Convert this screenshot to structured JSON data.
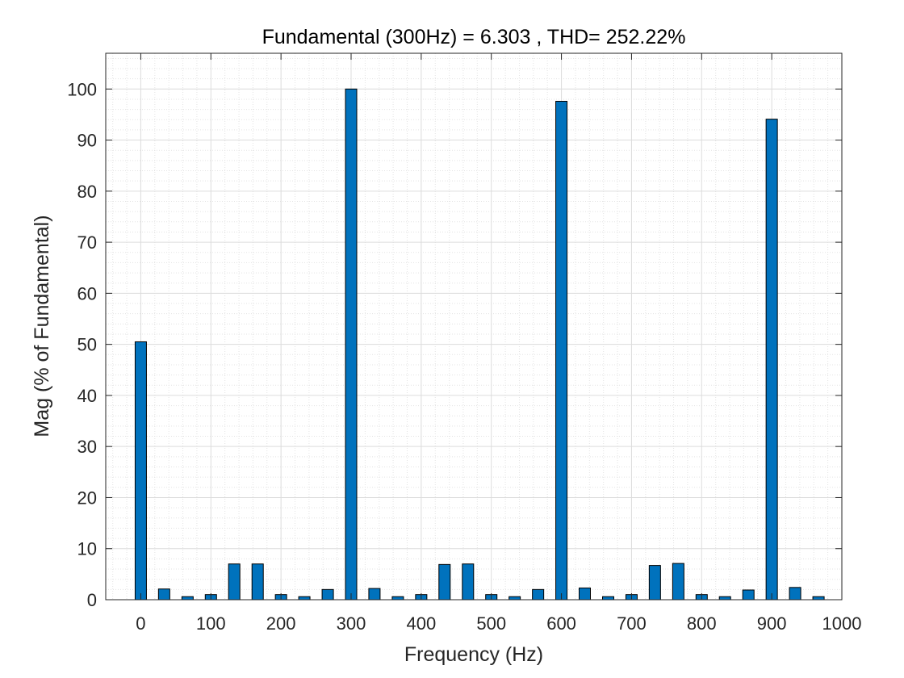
{
  "chart_data": {
    "type": "bar",
    "title": "Fundamental (300Hz) = 6.303 , THD= 252.22%",
    "xlabel": "Frequency (Hz)",
    "ylabel": "Mag (% of Fundamental)",
    "x": [
      0,
      33.3,
      66.7,
      100,
      133.3,
      166.7,
      200,
      233.3,
      266.7,
      300,
      333.3,
      366.7,
      400,
      433.3,
      466.7,
      500,
      533.3,
      566.7,
      600,
      633.3,
      666.7,
      700,
      733.3,
      766.7,
      800,
      833.3,
      866.7,
      900,
      933.3,
      966.7
    ],
    "values": [
      50.5,
      2.1,
      0.6,
      1.0,
      7.0,
      7.0,
      1.0,
      0.6,
      2.0,
      100.0,
      2.2,
      0.6,
      1.0,
      6.9,
      7.0,
      1.0,
      0.6,
      2.0,
      97.6,
      2.3,
      0.6,
      1.0,
      6.7,
      7.1,
      1.0,
      0.6,
      1.9,
      94.1,
      2.4,
      0.6
    ],
    "xlim": [
      -50,
      1000
    ],
    "ylim": [
      0,
      100
    ],
    "xticks": [
      "0",
      "100",
      "200",
      "300",
      "400",
      "500",
      "600",
      "700",
      "800",
      "900",
      "1000"
    ],
    "yticks": [
      "0",
      "10",
      "20",
      "30",
      "40",
      "50",
      "60",
      "70",
      "80",
      "90",
      "100"
    ],
    "grid": true,
    "minor_grid": true,
    "bar_color": "#0072BD",
    "bar_edge_color": "#000000"
  }
}
